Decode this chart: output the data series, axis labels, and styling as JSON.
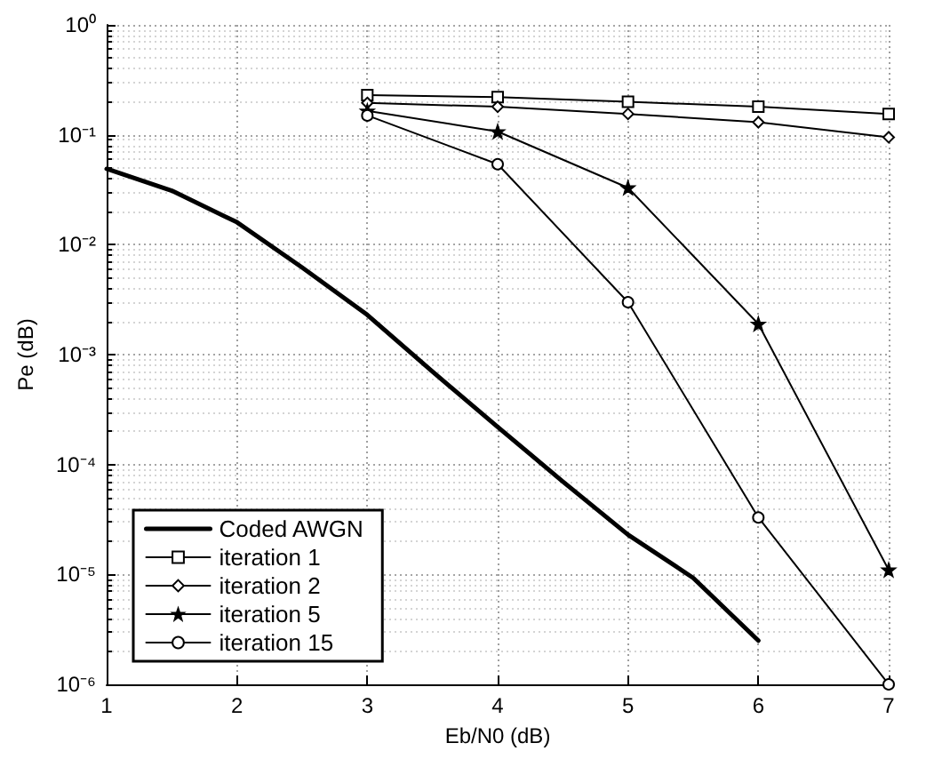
{
  "chart_data": {
    "type": "line",
    "xlabel": "Eb/N0 (dB)",
    "ylabel": "Pe (dB)",
    "log": "y",
    "grid": true,
    "legend": "bottom left",
    "xlim": [
      1,
      7
    ],
    "xticks": [
      1,
      2,
      3,
      4,
      5,
      6,
      7
    ],
    "ylim": [
      1e-06,
      1
    ],
    "yticks": [
      {
        "value": 1e-06,
        "label": "10⁻⁶"
      },
      {
        "value": 1e-05,
        "label": "10⁻⁵"
      },
      {
        "value": 0.0001,
        "label": "10⁻⁴"
      },
      {
        "value": 0.001,
        "label": "10⁻³"
      },
      {
        "value": 0.01,
        "label": "10⁻²"
      },
      {
        "value": 0.1,
        "label": "10⁻¹"
      },
      {
        "value": 1,
        "label": "10⁰"
      }
    ],
    "series": [
      {
        "name": "Coded AWGN",
        "color": "#000000",
        "marker": "none",
        "x": [
          1,
          1.5,
          2,
          2.5,
          3,
          3.5,
          4,
          4.5,
          5,
          5.5,
          6
        ],
        "values": [
          0.049,
          0.031,
          0.016,
          0.0062,
          0.0023,
          0.0007,
          0.00022,
          7e-05,
          2.3e-05,
          9.3e-06,
          2.5e-06
        ]
      },
      {
        "name": "iteration 1",
        "color": "#000000",
        "marker": "square",
        "x": [
          3,
          4,
          5,
          6,
          7
        ],
        "values": [
          0.23,
          0.22,
          0.2,
          0.18,
          0.155
        ]
      },
      {
        "name": "iteration 2",
        "color": "#000000",
        "marker": "diamond",
        "x": [
          3,
          4,
          5,
          6,
          7
        ],
        "values": [
          0.195,
          0.18,
          0.155,
          0.13,
          0.095
        ]
      },
      {
        "name": "iteration 5",
        "color": "#000000",
        "marker": "star",
        "x": [
          3,
          4,
          5,
          6,
          7
        ],
        "values": [
          0.165,
          0.107,
          0.033,
          0.0019,
          1.1e-05
        ]
      },
      {
        "name": "iteration 15",
        "color": "#000000",
        "marker": "circle",
        "x": [
          3,
          4,
          5,
          6,
          7
        ],
        "values": [
          0.15,
          0.054,
          0.003,
          3.3e-05,
          1e-06
        ]
      }
    ]
  }
}
